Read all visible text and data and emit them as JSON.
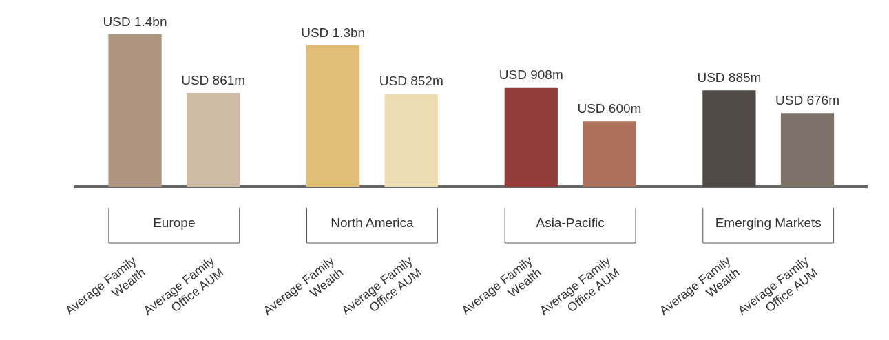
{
  "chart_data": {
    "type": "bar",
    "categories": [
      "Average Family Wealth",
      "Average Family Office AUM",
      "Average Family Wealth",
      "Average Family Office AUM",
      "Average Family Wealth",
      "Average Family Office AUM",
      "Average Family Wealth",
      "Average Family Office AUM"
    ],
    "values": [
      1400000000,
      861000000,
      1300000000,
      852000000,
      908000000,
      600000000,
      885000000,
      676000000
    ],
    "value_labels": [
      "USD 1.4bn",
      "USD 861m",
      "USD 1.3bn",
      "USD 852m",
      "USD 908m",
      "USD 600m",
      "USD 885m",
      "USD 676m"
    ],
    "colors": [
      "#ae9580",
      "#cfbaa3",
      "#e2bd78",
      "#ecdcb0",
      "#913e3a",
      "#ad705b",
      "#4f4a44",
      "#7c7267"
    ],
    "annotations": [
      "Europe",
      "North America",
      "Asia-Pacific",
      "Emerging Markets"
    ],
    "legend": false,
    "grid": false
  }
}
